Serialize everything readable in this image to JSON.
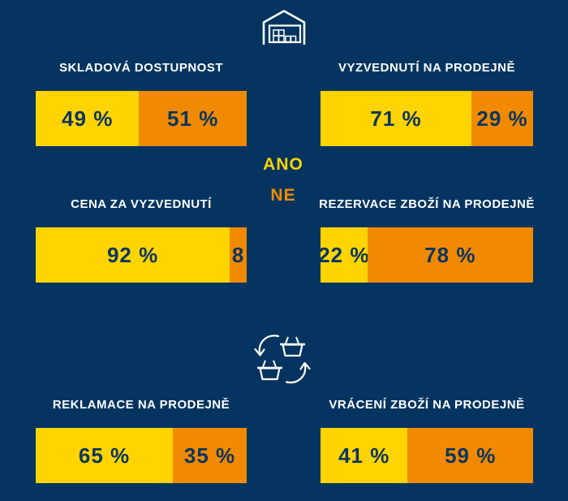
{
  "page": {
    "description": "Infographic with six 100%-stacked horizontal bar charts (yes/no survey answers), a warehouse icon header and a basket-exchange icon divider"
  },
  "colors": {
    "background": "#04345F",
    "yes_segment": "#FFD400",
    "no_segment": "#F18A00",
    "title_text": "#FFFFFF",
    "value_text": "#0C3560",
    "icon_stroke": "#FFFFFF"
  },
  "icons": {
    "header": "warehouse-icon",
    "divider": "basket-exchange-icon"
  },
  "legend": {
    "yes_label": "ANO",
    "no_label": "NE"
  },
  "chart_data": [
    {
      "type": "bar",
      "orientation": "horizontal-stacked-100pct",
      "title": "SKLADOVÁ DOSTUPNOST",
      "categories": [
        "ANO",
        "NE"
      ],
      "values": [
        49,
        51
      ],
      "display_labels": [
        "49 %",
        "51 %"
      ]
    },
    {
      "type": "bar",
      "orientation": "horizontal-stacked-100pct",
      "title": "VYZVEDNUTÍ NA PRODEJNĚ",
      "categories": [
        "ANO",
        "NE"
      ],
      "values": [
        71,
        29
      ],
      "display_labels": [
        "71 %",
        "29 %"
      ]
    },
    {
      "type": "bar",
      "orientation": "horizontal-stacked-100pct",
      "title": "CENA ZA VYZVEDNUTÍ",
      "categories": [
        "ANO",
        "NE"
      ],
      "values": [
        92,
        8
      ],
      "display_labels": [
        "92 %",
        "8"
      ]
    },
    {
      "type": "bar",
      "orientation": "horizontal-stacked-100pct",
      "title": "REZERVACE ZBOŽÍ NA PRODEJNĚ",
      "categories": [
        "ANO",
        "NE"
      ],
      "values": [
        22,
        78
      ],
      "display_labels": [
        "22 %",
        "78 %"
      ]
    },
    {
      "type": "bar",
      "orientation": "horizontal-stacked-100pct",
      "title": "REKLAMACE NA PRODEJNĚ",
      "categories": [
        "ANO",
        "NE"
      ],
      "values": [
        65,
        35
      ],
      "display_labels": [
        "65 %",
        "35 %"
      ]
    },
    {
      "type": "bar",
      "orientation": "horizontal-stacked-100pct",
      "title": "VRÁCENÍ ZBOŽÍ NA PRODEJNĚ",
      "categories": [
        "ANO",
        "NE"
      ],
      "values": [
        41,
        59
      ],
      "display_labels": [
        "41 %",
        "59 %"
      ]
    }
  ]
}
